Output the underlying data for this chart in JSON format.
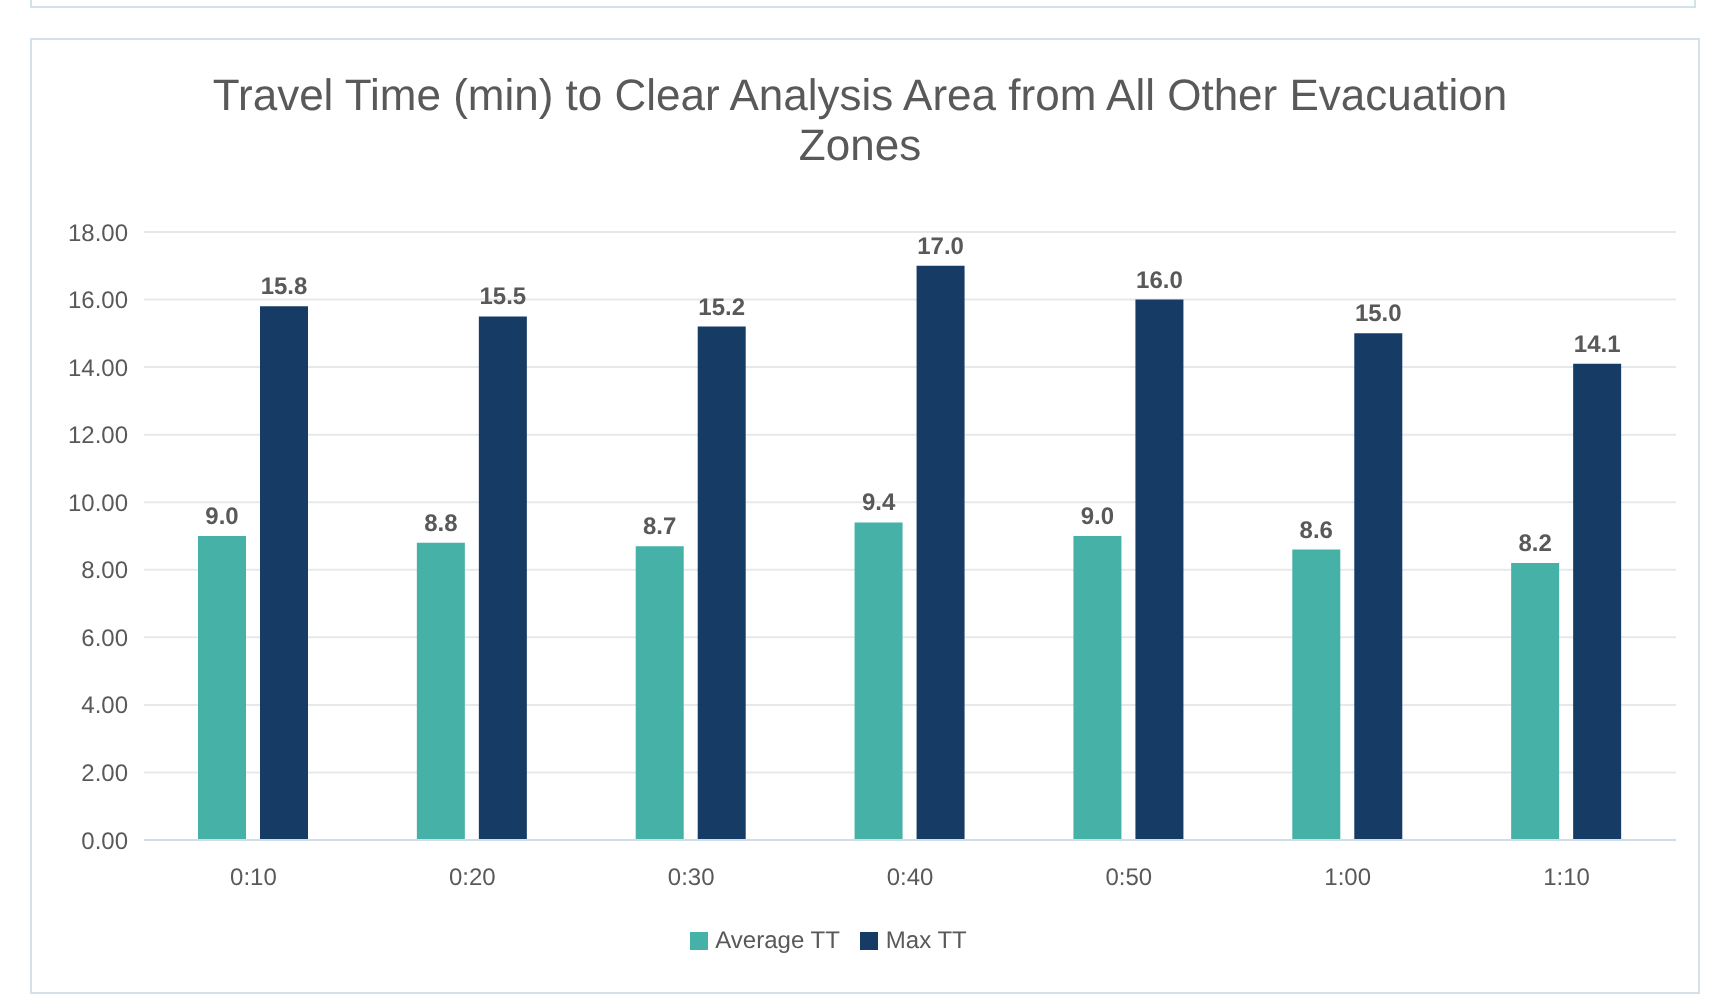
{
  "chart_data": {
    "type": "bar",
    "title": "Travel Time (min) to Clear Analysis Area from All Other Evacuation Zones",
    "categories": [
      "0:10",
      "0:20",
      "0:30",
      "0:40",
      "0:50",
      "1:00",
      "1:10"
    ],
    "series": [
      {
        "name": "Average TT",
        "color": "#46b1a7",
        "values": [
          9.0,
          8.8,
          8.7,
          9.4,
          9.0,
          8.6,
          8.2
        ],
        "value_labels": [
          "9.0",
          "8.8",
          "8.7",
          "9.4",
          "9.0",
          "8.6",
          "8.2"
        ]
      },
      {
        "name": "Max TT",
        "color": "#163c66",
        "values": [
          15.8,
          15.5,
          15.2,
          17.0,
          16.0,
          15.0,
          14.1
        ],
        "value_labels": [
          "15.8",
          "15.5",
          "15.2",
          "17.0",
          "16.0",
          "15.0",
          "14.1"
        ]
      }
    ],
    "ylim": [
      0,
      18
    ],
    "yticks": [
      {
        "value": 0,
        "label": "0.00"
      },
      {
        "value": 2,
        "label": "2.00"
      },
      {
        "value": 4,
        "label": "4.00"
      },
      {
        "value": 6,
        "label": "6.00"
      },
      {
        "value": 8,
        "label": "8.00"
      },
      {
        "value": 10,
        "label": "10.00"
      },
      {
        "value": 12,
        "label": "12.00"
      },
      {
        "value": 14,
        "label": "14.00"
      },
      {
        "value": 16,
        "label": "16.00"
      },
      {
        "value": 18,
        "label": "18.00"
      }
    ],
    "grid": "y",
    "legend": "bottom"
  }
}
